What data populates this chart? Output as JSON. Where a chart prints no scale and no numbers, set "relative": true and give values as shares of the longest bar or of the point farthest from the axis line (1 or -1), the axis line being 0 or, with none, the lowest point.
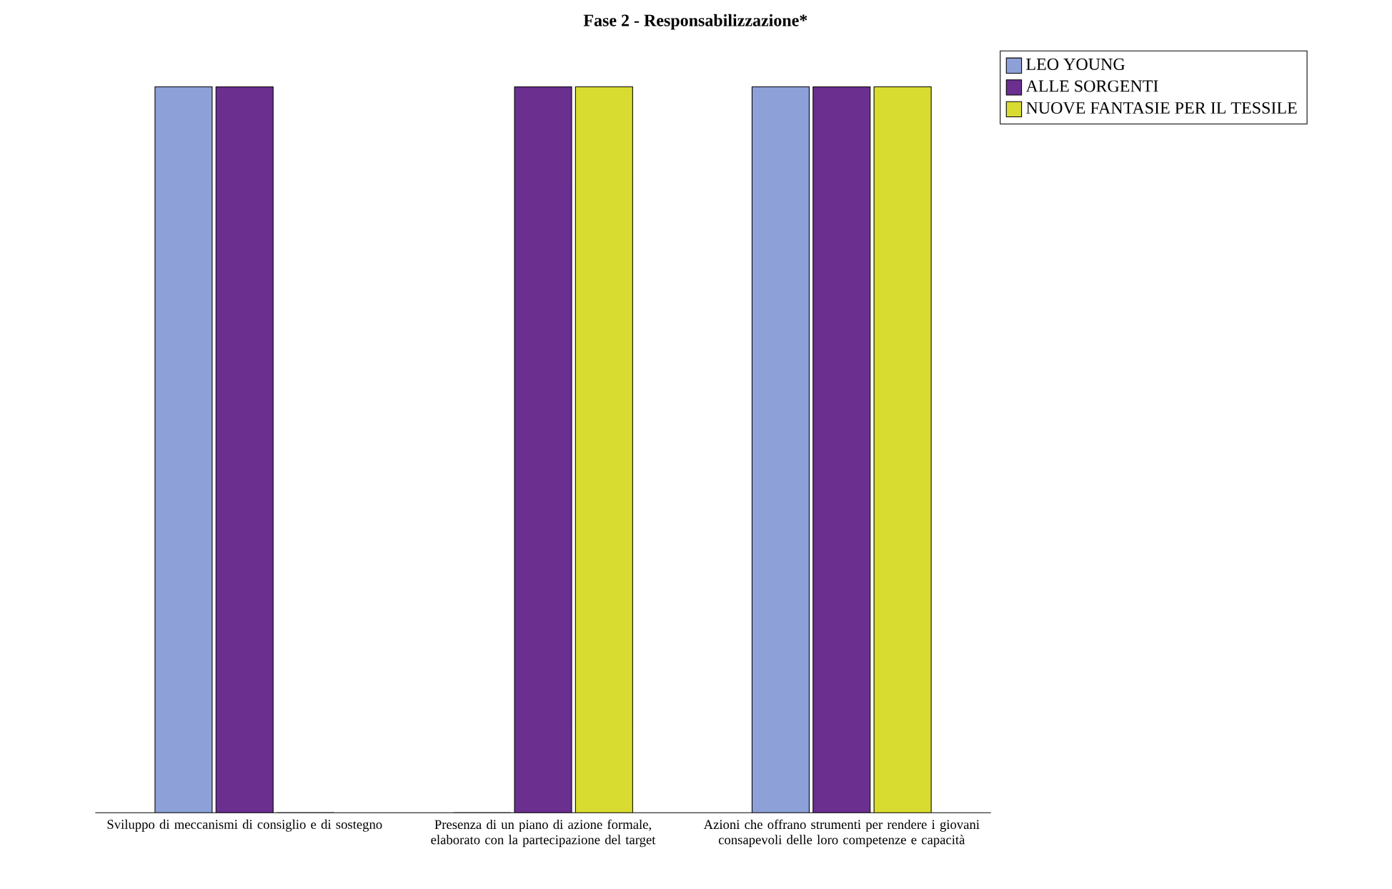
{
  "chart_data": {
    "type": "bar",
    "title": "Fase 2 - Responsabilizzazione*",
    "categories": [
      "Sviluppo di meccanismi di consiglio e di sostegno",
      "Presenza di un piano di azione formale, elaborato con la partecipazione del target",
      "Azioni che offrano strumenti per rendere i giovani consapevoli delle loro competenze e capacità"
    ],
    "relative": true,
    "legend": "top right",
    "series": [
      {
        "name": "LEO YOUNG",
        "color": "#8ea0d8",
        "values": [
          1,
          0,
          1
        ]
      },
      {
        "name": "ALLE SORGENTI",
        "color": "#6a2f8f",
        "values": [
          1,
          1,
          1
        ]
      },
      {
        "name": "NUOVE FANTASIE PER IL TESSILE",
        "color": "#d8dc30",
        "values": [
          0,
          1,
          1
        ]
      }
    ]
  }
}
